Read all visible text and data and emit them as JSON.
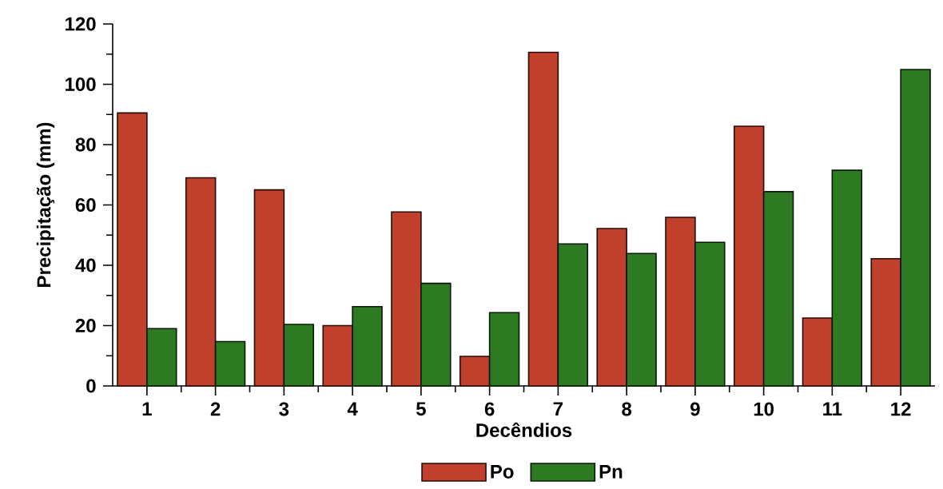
{
  "chart_data": {
    "type": "bar",
    "xlabel": "Decêndios",
    "ylabel": "Precipitação (mm)",
    "categories": [
      "1",
      "2",
      "3",
      "4",
      "5",
      "6",
      "7",
      "8",
      "9",
      "10",
      "11",
      "12"
    ],
    "series": [
      {
        "name": "Po",
        "color": "#c0402c",
        "values": [
          90.5,
          69,
          65,
          20,
          57.7,
          9.8,
          110.6,
          52.2,
          55.9,
          86.1,
          22.5,
          42.2
        ]
      },
      {
        "name": "Pn",
        "color": "#2e7a22",
        "values": [
          19,
          14.7,
          20.4,
          26.3,
          34,
          24.3,
          47.1,
          43.9,
          47.6,
          64.4,
          71.5,
          104.9
        ]
      }
    ],
    "ylim": [
      0,
      120
    ],
    "yticks": [
      0,
      20,
      40,
      60,
      80,
      100,
      120
    ],
    "grid": false,
    "legend": "bottom"
  }
}
